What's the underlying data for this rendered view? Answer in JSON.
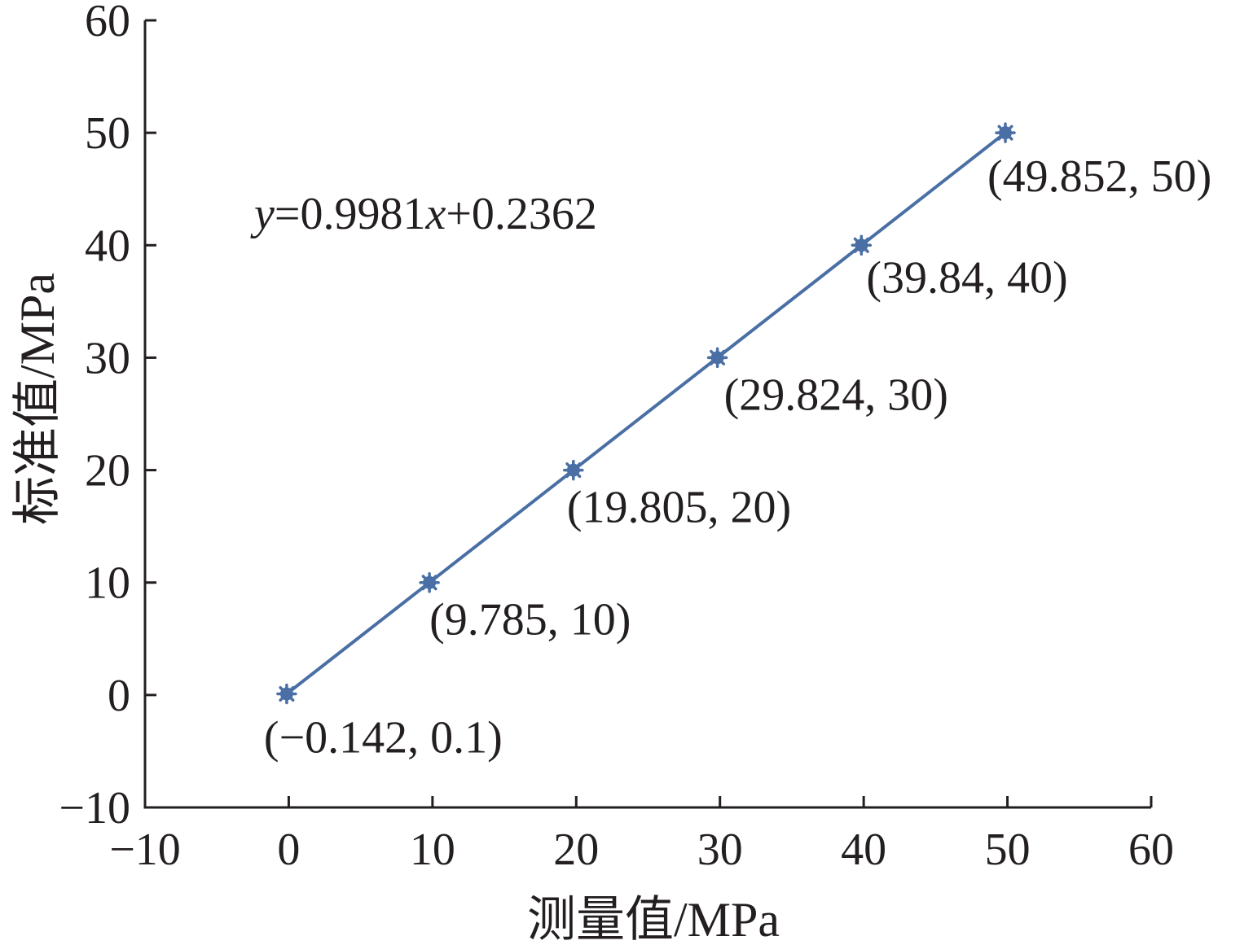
{
  "chart_data": {
    "type": "scatter",
    "title": "",
    "xlabel": "测量值/MPa",
    "ylabel": "标准值/MPa",
    "xlim": [
      -10,
      60
    ],
    "ylim": [
      -10,
      60
    ],
    "x_ticks": [
      -10,
      0,
      10,
      20,
      30,
      40,
      50,
      60
    ],
    "y_ticks": [
      -10,
      0,
      10,
      20,
      30,
      40,
      50,
      60
    ],
    "x_tick_labels": [
      "−10",
      "0",
      "10",
      "20",
      "30",
      "40",
      "50",
      "60"
    ],
    "y_tick_labels": [
      "−10",
      "0",
      "10",
      "20",
      "30",
      "40",
      "50",
      "60"
    ],
    "grid": false,
    "legend": "none",
    "series": [
      {
        "x": [
          -0.142,
          9.785,
          19.805,
          29.824,
          39.84,
          49.852
        ],
        "y": [
          0.1,
          10,
          20,
          30,
          40,
          50
        ],
        "color": "#4a6fa5",
        "marker": "asterisk",
        "connected": true,
        "point_labels": [
          "(−0.142, 0.1)",
          "(9.785, 10)",
          "(19.805, 20)",
          "(29.824, 30)",
          "(39.84, 40)",
          "(49.852, 50)"
        ]
      }
    ],
    "annotations": [
      {
        "parts": [
          {
            "text": "y",
            "italic": true
          },
          {
            "text": "=0.9981",
            "italic": false
          },
          {
            "text": "x",
            "italic": true
          },
          {
            "text": "+0.2362",
            "italic": false
          }
        ]
      }
    ]
  }
}
